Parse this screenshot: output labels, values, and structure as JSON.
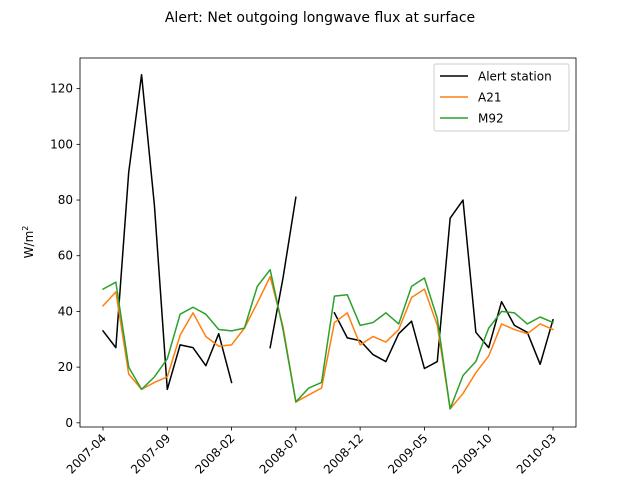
{
  "chart_data": {
    "type": "line",
    "title": "Alert: Net outgoing longwave flux at surface",
    "xlabel": "",
    "ylabel": "W/m",
    "ylabel_sup": "2",
    "x": [
      "2007-04",
      "2007-05",
      "2007-06",
      "2007-07",
      "2007-08",
      "2007-09",
      "2007-10",
      "2007-11",
      "2007-12",
      "2008-01",
      "2008-02",
      "2008-03",
      "2008-04",
      "2008-05",
      "2008-06",
      "2008-07",
      "2008-08",
      "2008-09",
      "2008-10",
      "2008-11",
      "2008-12",
      "2009-01",
      "2009-02",
      "2009-03",
      "2009-04",
      "2009-05",
      "2009-06",
      "2009-07",
      "2009-08",
      "2009-09",
      "2009-10",
      "2009-11",
      "2009-12",
      "2010-01",
      "2010-02",
      "2010-03"
    ],
    "series": [
      {
        "name": "Alert station",
        "color": "#000000",
        "values": [
          33,
          27,
          90,
          125,
          78,
          12,
          28,
          27,
          20.5,
          32,
          14.5,
          null,
          null,
          27,
          52,
          81,
          null,
          null,
          39.5,
          30.5,
          29.5,
          24.5,
          22,
          32,
          36.5,
          19.5,
          22,
          73.5,
          80,
          32.5,
          27,
          43.5,
          35,
          32.5,
          21,
          37
        ]
      },
      {
        "name": "A21",
        "color": "#ff7f0e",
        "values": [
          42,
          47,
          17.5,
          12,
          14.5,
          16.5,
          31.5,
          39.5,
          31,
          27.5,
          28,
          34,
          43,
          52.5,
          34.5,
          7.5,
          10,
          12.5,
          36,
          39.5,
          28,
          31,
          29,
          33.5,
          45,
          48,
          35,
          5,
          10.5,
          18,
          24,
          35.5,
          33.5,
          32,
          35.5,
          33.5
        ]
      },
      {
        "name": "M92",
        "color": "#2ca02c",
        "values": [
          48,
          50.5,
          20,
          12,
          16.5,
          23,
          39,
          41.5,
          39,
          33.5,
          33,
          34,
          49,
          55,
          33.5,
          7.5,
          12.5,
          14.5,
          45.5,
          46,
          35,
          36,
          39.5,
          35.5,
          49,
          52,
          37.5,
          5,
          17,
          22,
          34,
          40,
          39.5,
          35.5,
          38,
          36
        ]
      }
    ],
    "x_ticks": [
      "2007-04",
      "2007-09",
      "2008-02",
      "2008-07",
      "2008-12",
      "2009-05",
      "2009-10",
      "2010-03"
    ],
    "y_ticks": [
      0,
      20,
      40,
      60,
      80,
      100,
      120
    ],
    "ylim": [
      -1.5,
      131
    ],
    "grid": false,
    "legend_position": "upper right"
  }
}
